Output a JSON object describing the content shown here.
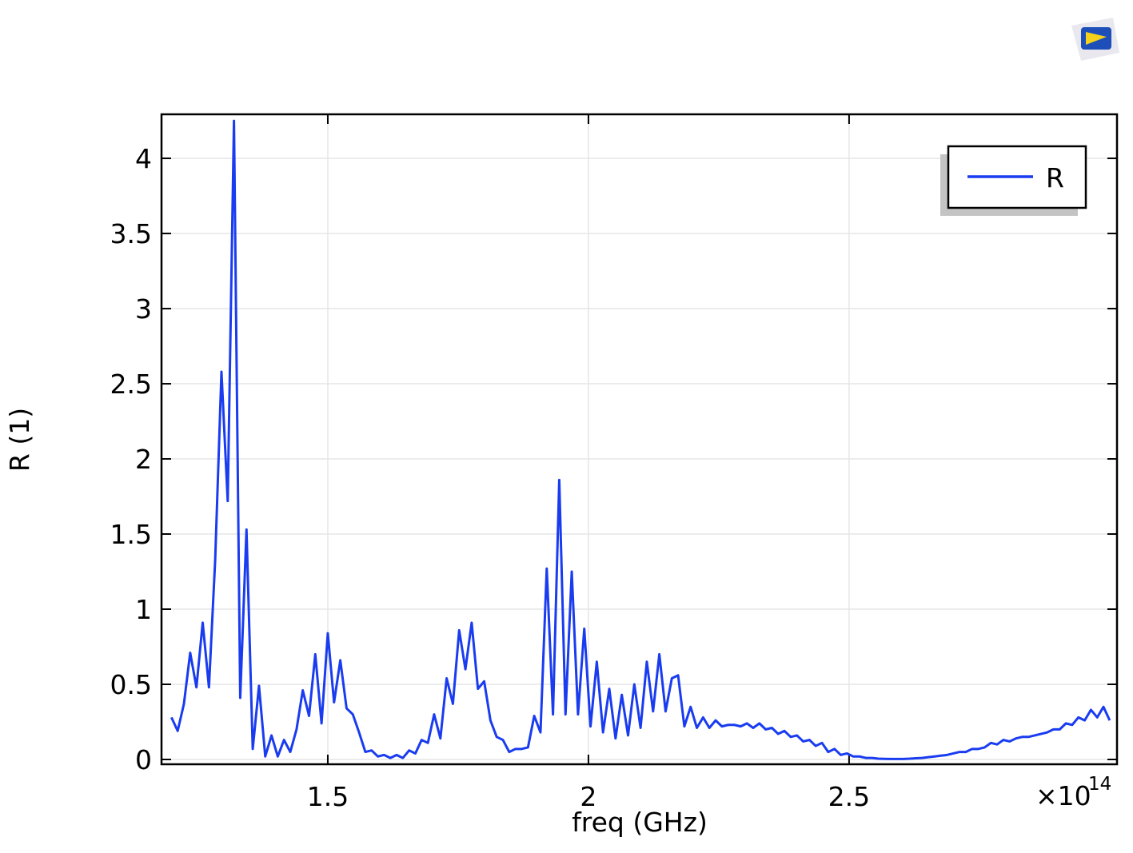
{
  "chart_data": {
    "type": "line",
    "x_label": "freq (GHz)",
    "y_label": "R (1)",
    "x_multiplier": "×10",
    "x_exponent": "14",
    "x": [
      1.2,
      1.212,
      1.224,
      1.236,
      1.248,
      1.26,
      1.272,
      1.284,
      1.296,
      1.308,
      1.32,
      1.332,
      1.344,
      1.356,
      1.368,
      1.38,
      1.392,
      1.404,
      1.416,
      1.428,
      1.44,
      1.452,
      1.464,
      1.476,
      1.488,
      1.5,
      1.512,
      1.524,
      1.536,
      1.548,
      1.56,
      1.572,
      1.584,
      1.596,
      1.608,
      1.62,
      1.632,
      1.644,
      1.656,
      1.668,
      1.68,
      1.692,
      1.704,
      1.716,
      1.728,
      1.74,
      1.752,
      1.764,
      1.776,
      1.788,
      1.8,
      1.812,
      1.824,
      1.836,
      1.848,
      1.86,
      1.872,
      1.884,
      1.896,
      1.908,
      1.92,
      1.932,
      1.944,
      1.956,
      1.968,
      1.98,
      1.992,
      2.004,
      2.016,
      2.028,
      2.04,
      2.052,
      2.064,
      2.076,
      2.088,
      2.1,
      2.112,
      2.124,
      2.136,
      2.148,
      2.16,
      2.172,
      2.184,
      2.196,
      2.208,
      2.22,
      2.232,
      2.244,
      2.256,
      2.268,
      2.28,
      2.292,
      2.304,
      2.316,
      2.328,
      2.34,
      2.352,
      2.364,
      2.376,
      2.388,
      2.4,
      2.412,
      2.424,
      2.436,
      2.448,
      2.46,
      2.472,
      2.484,
      2.496,
      2.508,
      2.52,
      2.532,
      2.544,
      2.556,
      2.568,
      2.58,
      2.592,
      2.604,
      2.616,
      2.628,
      2.64,
      2.652,
      2.664,
      2.676,
      2.688,
      2.7,
      2.712,
      2.724,
      2.736,
      2.748,
      2.76,
      2.772,
      2.784,
      2.796,
      2.808,
      2.82,
      2.832,
      2.844,
      2.856,
      2.868,
      2.88,
      2.892,
      2.904,
      2.916,
      2.928,
      2.94,
      2.952,
      2.964,
      2.976,
      2.988,
      3.0
    ],
    "series": [
      {
        "name": "R",
        "color": "#1a3cf0",
        "values": [
          0.28,
          0.19,
          0.37,
          0.71,
          0.48,
          0.91,
          0.48,
          1.33,
          2.58,
          1.72,
          4.25,
          0.41,
          1.53,
          0.07,
          0.49,
          0.02,
          0.16,
          0.02,
          0.13,
          0.05,
          0.2,
          0.46,
          0.29,
          0.7,
          0.24,
          0.84,
          0.38,
          0.66,
          0.34,
          0.3,
          0.18,
          0.05,
          0.06,
          0.02,
          0.03,
          0.01,
          0.03,
          0.01,
          0.06,
          0.04,
          0.13,
          0.11,
          0.3,
          0.14,
          0.54,
          0.37,
          0.86,
          0.6,
          0.91,
          0.47,
          0.52,
          0.26,
          0.15,
          0.13,
          0.05,
          0.07,
          0.07,
          0.08,
          0.29,
          0.18,
          1.27,
          0.3,
          1.86,
          0.3,
          1.25,
          0.3,
          0.87,
          0.22,
          0.65,
          0.18,
          0.47,
          0.14,
          0.43,
          0.16,
          0.5,
          0.21,
          0.65,
          0.32,
          0.7,
          0.32,
          0.54,
          0.56,
          0.22,
          0.35,
          0.21,
          0.28,
          0.21,
          0.26,
          0.22,
          0.23,
          0.23,
          0.22,
          0.24,
          0.21,
          0.24,
          0.2,
          0.21,
          0.17,
          0.19,
          0.15,
          0.16,
          0.12,
          0.13,
          0.09,
          0.11,
          0.05,
          0.07,
          0.03,
          0.04,
          0.02,
          0.02,
          0.01,
          0.01,
          0.005,
          0.004,
          0.003,
          0.003,
          0.003,
          0.005,
          0.008,
          0.01,
          0.015,
          0.02,
          0.025,
          0.03,
          0.04,
          0.05,
          0.05,
          0.07,
          0.07,
          0.08,
          0.11,
          0.1,
          0.13,
          0.12,
          0.14,
          0.15,
          0.15,
          0.16,
          0.17,
          0.18,
          0.2,
          0.2,
          0.24,
          0.23,
          0.28,
          0.26,
          0.33,
          0.28,
          0.35,
          0.26
        ]
      }
    ],
    "xlim": [
      1.181,
      3.014
    ],
    "ylim": [
      -0.032,
      4.293
    ],
    "xticks": [
      1.5,
      2,
      2.5
    ],
    "yticks": [
      0,
      0.5,
      1,
      1.5,
      2,
      2.5,
      3,
      3.5,
      4
    ],
    "grid": true,
    "legend": "upper right"
  }
}
